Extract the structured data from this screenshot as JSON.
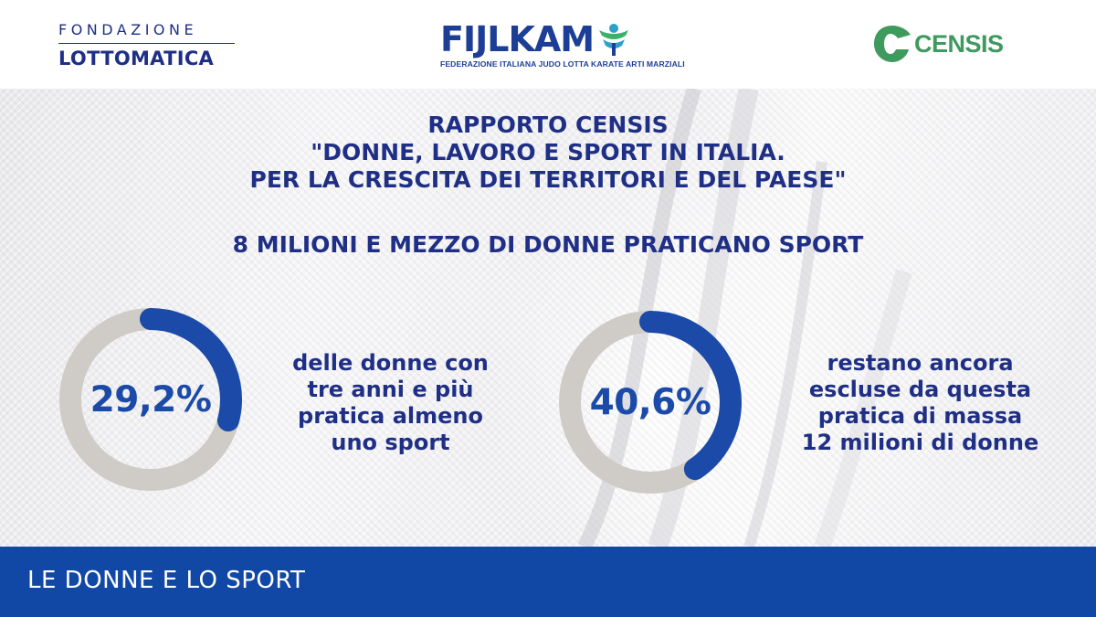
{
  "logos": {
    "fondazione": {
      "line1": "FONDAZIONE",
      "line2": "LOTTOMATICA",
      "color": "#1f2f86"
    },
    "fijlkam": {
      "word": "FIJLKAM",
      "subtitle": "FEDERAZIONE ITALIANA JUDO LOTTA KARATE ARTI MARZIALI",
      "color": "#1d3e96",
      "accent": "#2fa0c8"
    },
    "censis": {
      "word": "CENSIS",
      "color": "#3f9a5e"
    }
  },
  "title": {
    "lines": [
      "RAPPORTO CENSIS",
      "\"DONNE, LAVORO E SPORT IN ITALIA.",
      "PER LA CRESCITA DEI TERRITORI E DEL PAESE\""
    ]
  },
  "headline": "8 MILIONI E MEZZO DI DONNE PRATICANO SPORT",
  "chart_data": [
    {
      "type": "pie",
      "label": "29,2%",
      "values": [
        29.2,
        70.8
      ],
      "colors": [
        "#1b4aa8",
        "#cfcbc7"
      ],
      "caption_lines": [
        "delle donne con",
        "tre anni e più",
        "pratica almeno",
        "uno sport"
      ]
    },
    {
      "type": "pie",
      "label": "40,6%",
      "values": [
        40.6,
        59.4
      ],
      "colors": [
        "#1b4aa8",
        "#cfcbc7"
      ],
      "caption_lines": [
        "restano ancora",
        "escluse da questa",
        "pratica di massa",
        "12 milioni di donne"
      ]
    }
  ],
  "footer": {
    "label": "LE DONNE E LO SPORT",
    "background": "#1148a6"
  }
}
